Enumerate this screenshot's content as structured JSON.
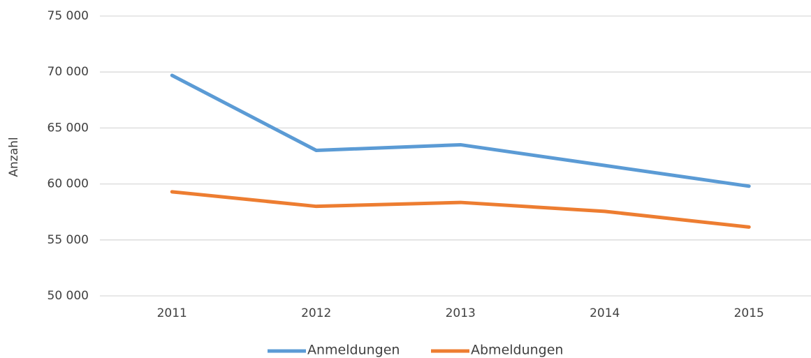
{
  "chart_data": {
    "type": "line",
    "y_label": "Anzahl",
    "categories": [
      "2011",
      "2012",
      "2013",
      "2014",
      "2015"
    ],
    "series": [
      {
        "name": "Anmeldungen",
        "color": "#5b9bd5",
        "values": [
          69700,
          63000,
          63500,
          61650,
          59800
        ]
      },
      {
        "name": "Abmeldungen",
        "color": "#ed7d31",
        "values": [
          59300,
          58000,
          58350,
          57550,
          56150
        ]
      }
    ],
    "ylim": [
      50000,
      75000
    ],
    "yticks": [
      {
        "value": 50000,
        "label": "50 000"
      },
      {
        "value": 55000,
        "label": "55 000"
      },
      {
        "value": 60000,
        "label": "60 000"
      },
      {
        "value": 65000,
        "label": "65 000"
      },
      {
        "value": 70000,
        "label": "70 000"
      },
      {
        "value": 75000,
        "label": "75 000"
      }
    ],
    "grid": true,
    "legend": "bottom"
  }
}
